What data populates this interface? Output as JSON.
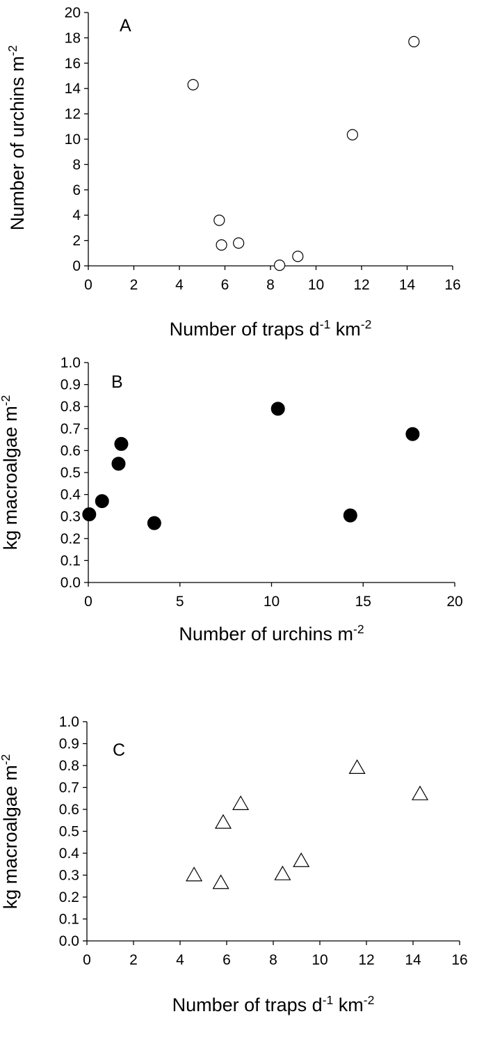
{
  "chart_data": [
    {
      "type": "scatter",
      "panel_label": "A",
      "xlabel": "Number of traps d-1 km-2",
      "ylabel": "Number of urchins m-2",
      "xlabel_parts": [
        {
          "t": "Number of traps d"
        },
        {
          "t": "-1",
          "sup": true
        },
        {
          "t": " km"
        },
        {
          "t": "-2",
          "sup": true
        }
      ],
      "ylabel_parts": [
        {
          "t": "Number of urchins m"
        },
        {
          "t": "-2",
          "sup": true
        }
      ],
      "xlim": [
        0,
        16
      ],
      "xstep": 2,
      "ylim": [
        0,
        20
      ],
      "ystep": 2,
      "ydecimals": 0,
      "marker": "open-circle",
      "points": [
        {
          "x": 4.6,
          "y": 14.3
        },
        {
          "x": 5.75,
          "y": 3.6
        },
        {
          "x": 5.85,
          "y": 1.65
        },
        {
          "x": 6.6,
          "y": 1.8
        },
        {
          "x": 8.4,
          "y": 0.05
        },
        {
          "x": 9.2,
          "y": 0.75
        },
        {
          "x": 11.6,
          "y": 10.35
        },
        {
          "x": 14.3,
          "y": 17.7
        }
      ],
      "grid": false
    },
    {
      "type": "scatter",
      "panel_label": "B",
      "xlabel": "Number of urchins m-2",
      "ylabel": "kg macroalgae m-2",
      "xlabel_parts": [
        {
          "t": "Number of urchins m"
        },
        {
          "t": "-2",
          "sup": true
        }
      ],
      "ylabel_parts": [
        {
          "t": "kg macroalgae m"
        },
        {
          "t": "-2",
          "sup": true
        }
      ],
      "xlim": [
        0,
        20
      ],
      "xstep": 5,
      "ylim": [
        0,
        1.0
      ],
      "ystep": 0.1,
      "ydecimals": 1,
      "marker": "filled-circle",
      "points": [
        {
          "x": 0.05,
          "y": 0.31
        },
        {
          "x": 0.75,
          "y": 0.37
        },
        {
          "x": 1.65,
          "y": 0.54
        },
        {
          "x": 1.8,
          "y": 0.63
        },
        {
          "x": 3.6,
          "y": 0.27
        },
        {
          "x": 10.35,
          "y": 0.79
        },
        {
          "x": 14.3,
          "y": 0.305
        },
        {
          "x": 17.7,
          "y": 0.675
        }
      ],
      "grid": false
    },
    {
      "type": "scatter",
      "panel_label": "C",
      "xlabel": "Number of traps d-1 km-2",
      "ylabel": "kg macroalgae m-2",
      "xlabel_parts": [
        {
          "t": "Number of traps d"
        },
        {
          "t": "-1",
          "sup": true
        },
        {
          "t": " km"
        },
        {
          "t": "-2",
          "sup": true
        }
      ],
      "ylabel_parts": [
        {
          "t": "kg macroalgae m"
        },
        {
          "t": "-2",
          "sup": true
        }
      ],
      "xlim": [
        0,
        16
      ],
      "xstep": 2,
      "ylim": [
        0,
        1.0
      ],
      "ystep": 0.1,
      "ydecimals": 1,
      "marker": "open-triangle",
      "points": [
        {
          "x": 4.6,
          "y": 0.3
        },
        {
          "x": 5.75,
          "y": 0.265
        },
        {
          "x": 5.85,
          "y": 0.54
        },
        {
          "x": 6.6,
          "y": 0.625
        },
        {
          "x": 8.4,
          "y": 0.305
        },
        {
          "x": 9.2,
          "y": 0.365
        },
        {
          "x": 11.6,
          "y": 0.79
        },
        {
          "x": 14.3,
          "y": 0.67
        }
      ],
      "grid": false
    }
  ]
}
